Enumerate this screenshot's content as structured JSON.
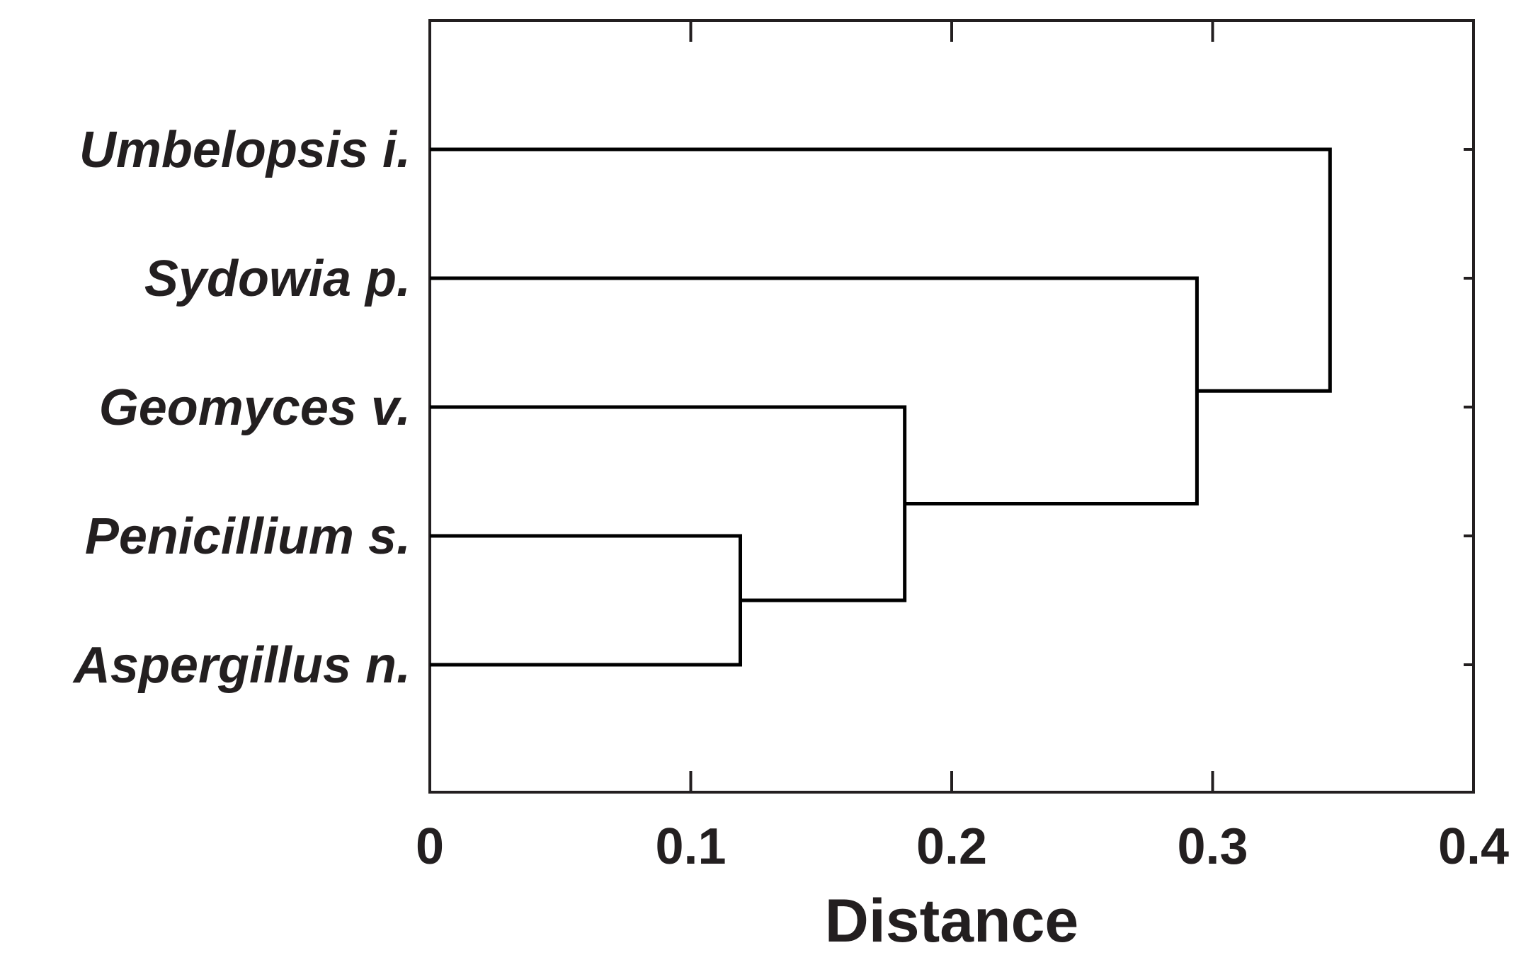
{
  "chart_data": {
    "type": "dendrogram",
    "orientation": "horizontal",
    "xlabel": "Distance",
    "xlim": [
      0,
      0.4
    ],
    "xticks": [
      "0",
      "0.1",
      "0.2",
      "0.3",
      "0.4"
    ],
    "leaves": [
      "Umbelopsis i.",
      "Sydowia p.",
      "Geomyces v.",
      "Penicillium s.",
      "Aspergillus n."
    ],
    "merges": [
      {
        "left": "Penicillium s.",
        "right": "Aspergillus n.",
        "distance": 0.119
      },
      {
        "left": "Geomyces v.",
        "right": "Penicillium s. + Aspergillus n.",
        "distance": 0.182
      },
      {
        "left": "Sydowia p.",
        "right": "Geomyces v. + Penicillium s. + Aspergillus n.",
        "distance": 0.294
      },
      {
        "left": "Umbelopsis i.",
        "right": "Sydowia p. + Geomyces v. + Penicillium s. + Aspergillus n.",
        "distance": 0.345
      }
    ],
    "grid": false
  }
}
